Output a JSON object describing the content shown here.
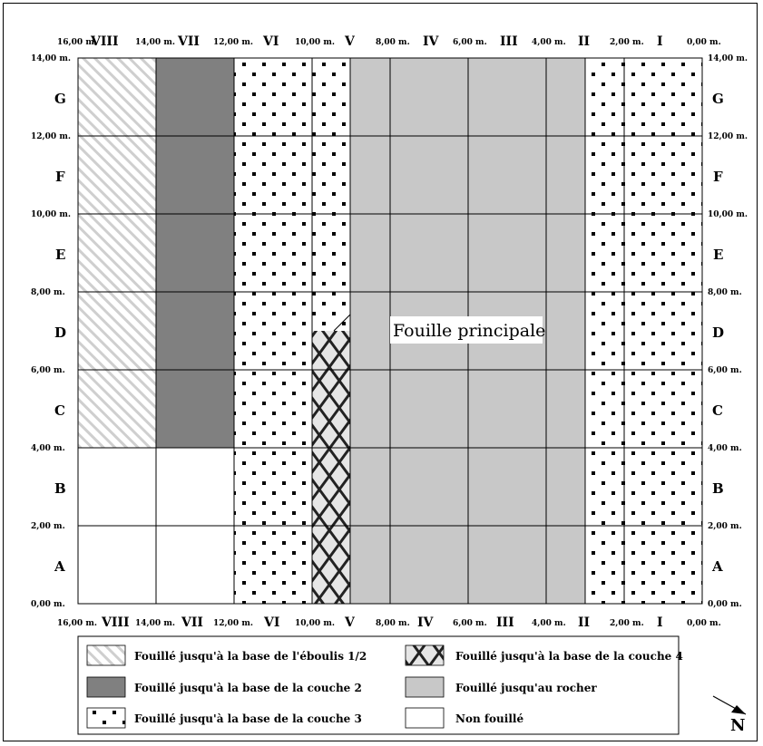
{
  "columns": [
    "VIII",
    "VII",
    "VI",
    "V",
    "IV",
    "III",
    "II",
    "I"
  ],
  "rows": [
    "G",
    "F",
    "E",
    "D",
    "C",
    "B",
    "A"
  ],
  "x_distance_labels": [
    "16,00 m.",
    "14,00 m.",
    "12,00 m.",
    "10,00 m.",
    "8,00 m.",
    "6,00 m.",
    "4,00 m.",
    "2,00 m.",
    "0,00 m."
  ],
  "y_distance_labels": [
    "14,00 m.",
    "12,00 m.",
    "10,00 m.",
    "8,00 m.",
    "6,00 m.",
    "4,00 m.",
    "2,00 m.",
    "0,00 m."
  ],
  "annotation": "Fouille principale",
  "north_label": "N",
  "legend": [
    {
      "key": "eboulis",
      "label": "Fouillé jusqu'à la base de l'éboulis 1/2"
    },
    {
      "key": "couche4",
      "label": "Fouillé jusqu'à la base de la couche 4"
    },
    {
      "key": "couche2",
      "label": "Fouillé jusqu'à la base de la couche 2"
    },
    {
      "key": "rocher",
      "label": "Fouillé jusqu'au rocher"
    },
    {
      "key": "couche3",
      "label": "Fouillé jusqu'à la base de la couche 3"
    },
    {
      "key": "nonfouille",
      "label": "Non fouillé"
    }
  ],
  "colors": {
    "couche2": "#808080",
    "rocher": "#c8c8c8",
    "eboulis_stripe": "#c8c8c8",
    "dots": "#000000",
    "lines": "#000000"
  }
}
